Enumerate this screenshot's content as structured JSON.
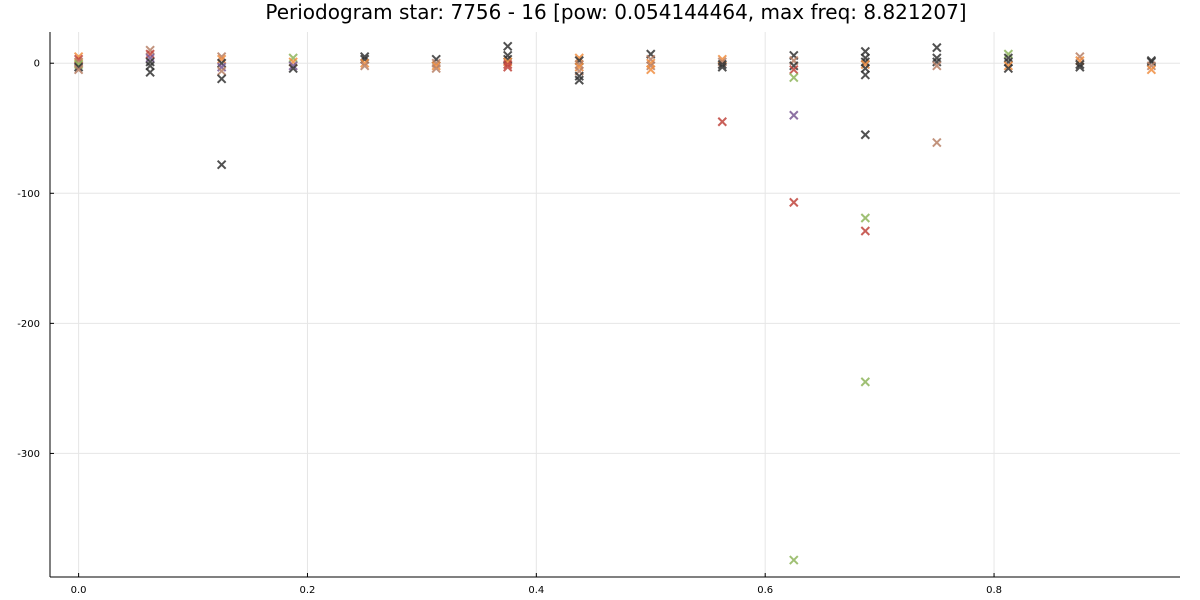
{
  "chart_data": {
    "type": "scatter",
    "title": "Periodogram star: 7756 - 16 [pow: 0.054144464, max freq: 8.821207]",
    "xlabel": "",
    "ylabel": "",
    "xlim": [
      -0.025,
      0.9625
    ],
    "ylim": [
      -395,
      24
    ],
    "x_ticks": [
      0.0,
      0.2,
      0.4,
      0.6,
      0.8
    ],
    "x_tick_labels": [
      "0.0",
      "0.2",
      "0.4",
      "0.6",
      "0.8"
    ],
    "y_ticks": [
      0,
      -100,
      -200,
      -300
    ],
    "y_tick_labels": [
      "0",
      "-100",
      "-200",
      "-300"
    ],
    "grid": true,
    "legend": "none",
    "marker": "x",
    "colors": {
      "dark": "#333333",
      "red": "#c0453d",
      "orange": "#f08e40",
      "green": "#8fb65c",
      "purple": "#7a5a94",
      "brown": "#b88167"
    },
    "points": [
      {
        "x": 0.0,
        "y": 5,
        "c": "orange"
      },
      {
        "x": 0.0,
        "y": 3,
        "c": "red"
      },
      {
        "x": 0.0,
        "y": 1,
        "c": "brown"
      },
      {
        "x": 0.0,
        "y": -1,
        "c": "green"
      },
      {
        "x": 0.0,
        "y": -3,
        "c": "dark"
      },
      {
        "x": 0.0,
        "y": -5,
        "c": "brown"
      },
      {
        "x": 0.0625,
        "y": 10,
        "c": "brown"
      },
      {
        "x": 0.0625,
        "y": 7,
        "c": "red"
      },
      {
        "x": 0.0625,
        "y": 4,
        "c": "purple"
      },
      {
        "x": 0.0625,
        "y": 1,
        "c": "dark"
      },
      {
        "x": 0.0625,
        "y": -2,
        "c": "dark"
      },
      {
        "x": 0.0625,
        "y": -7,
        "c": "dark"
      },
      {
        "x": 0.125,
        "y": 5,
        "c": "brown"
      },
      {
        "x": 0.125,
        "y": 3,
        "c": "orange"
      },
      {
        "x": 0.125,
        "y": 0,
        "c": "dark"
      },
      {
        "x": 0.125,
        "y": -3,
        "c": "purple"
      },
      {
        "x": 0.125,
        "y": -6,
        "c": "brown"
      },
      {
        "x": 0.125,
        "y": -12,
        "c": "dark"
      },
      {
        "x": 0.125,
        "y": -78,
        "c": "dark"
      },
      {
        "x": 0.1875,
        "y": 4,
        "c": "green"
      },
      {
        "x": 0.1875,
        "y": 1,
        "c": "orange"
      },
      {
        "x": 0.1875,
        "y": -2,
        "c": "purple"
      },
      {
        "x": 0.1875,
        "y": -4,
        "c": "dark"
      },
      {
        "x": 0.25,
        "y": 5,
        "c": "dark"
      },
      {
        "x": 0.25,
        "y": 3,
        "c": "dark"
      },
      {
        "x": 0.25,
        "y": 0,
        "c": "orange"
      },
      {
        "x": 0.25,
        "y": -2,
        "c": "brown"
      },
      {
        "x": 0.3125,
        "y": 3,
        "c": "dark"
      },
      {
        "x": 0.3125,
        "y": 0,
        "c": "brown"
      },
      {
        "x": 0.3125,
        "y": -2,
        "c": "orange"
      },
      {
        "x": 0.3125,
        "y": -4,
        "c": "brown"
      },
      {
        "x": 0.375,
        "y": 13,
        "c": "dark"
      },
      {
        "x": 0.375,
        "y": 6,
        "c": "dark"
      },
      {
        "x": 0.375,
        "y": 3,
        "c": "dark"
      },
      {
        "x": 0.375,
        "y": 1,
        "c": "orange"
      },
      {
        "x": 0.375,
        "y": -1,
        "c": "red"
      },
      {
        "x": 0.375,
        "y": -3,
        "c": "red"
      },
      {
        "x": 0.4375,
        "y": 4,
        "c": "orange"
      },
      {
        "x": 0.4375,
        "y": 2,
        "c": "dark"
      },
      {
        "x": 0.4375,
        "y": -1,
        "c": "brown"
      },
      {
        "x": 0.4375,
        "y": -3,
        "c": "orange"
      },
      {
        "x": 0.4375,
        "y": -6,
        "c": "brown"
      },
      {
        "x": 0.4375,
        "y": -10,
        "c": "dark"
      },
      {
        "x": 0.4375,
        "y": -13,
        "c": "dark"
      },
      {
        "x": 0.5,
        "y": 7,
        "c": "dark"
      },
      {
        "x": 0.5,
        "y": 3,
        "c": "brown"
      },
      {
        "x": 0.5,
        "y": 0,
        "c": "orange"
      },
      {
        "x": 0.5,
        "y": -2,
        "c": "brown"
      },
      {
        "x": 0.5,
        "y": -5,
        "c": "orange"
      },
      {
        "x": 0.5625,
        "y": 3,
        "c": "orange"
      },
      {
        "x": 0.5625,
        "y": 1,
        "c": "brown"
      },
      {
        "x": 0.5625,
        "y": -1,
        "c": "dark"
      },
      {
        "x": 0.5625,
        "y": -3,
        "c": "dark"
      },
      {
        "x": 0.5625,
        "y": -45,
        "c": "red"
      },
      {
        "x": 0.625,
        "y": 6,
        "c": "dark"
      },
      {
        "x": 0.625,
        "y": 2,
        "c": "brown"
      },
      {
        "x": 0.625,
        "y": -2,
        "c": "dark"
      },
      {
        "x": 0.625,
        "y": -5,
        "c": "red"
      },
      {
        "x": 0.625,
        "y": -11,
        "c": "green"
      },
      {
        "x": 0.625,
        "y": -40,
        "c": "purple"
      },
      {
        "x": 0.625,
        "y": -107,
        "c": "red"
      },
      {
        "x": 0.625,
        "y": -382,
        "c": "green"
      },
      {
        "x": 0.6875,
        "y": 9,
        "c": "dark"
      },
      {
        "x": 0.6875,
        "y": 4,
        "c": "dark"
      },
      {
        "x": 0.6875,
        "y": 1,
        "c": "dark"
      },
      {
        "x": 0.6875,
        "y": -1,
        "c": "orange"
      },
      {
        "x": 0.6875,
        "y": -4,
        "c": "dark"
      },
      {
        "x": 0.6875,
        "y": -9,
        "c": "dark"
      },
      {
        "x": 0.6875,
        "y": -55,
        "c": "dark"
      },
      {
        "x": 0.6875,
        "y": -119,
        "c": "green"
      },
      {
        "x": 0.6875,
        "y": -129,
        "c": "red"
      },
      {
        "x": 0.6875,
        "y": -245,
        "c": "green"
      },
      {
        "x": 0.75,
        "y": 12,
        "c": "dark"
      },
      {
        "x": 0.75,
        "y": 4,
        "c": "dark"
      },
      {
        "x": 0.75,
        "y": 1,
        "c": "dark"
      },
      {
        "x": 0.75,
        "y": -2,
        "c": "brown"
      },
      {
        "x": 0.75,
        "y": -61,
        "c": "brown"
      },
      {
        "x": 0.8125,
        "y": 7,
        "c": "green"
      },
      {
        "x": 0.8125,
        "y": 4,
        "c": "dark"
      },
      {
        "x": 0.8125,
        "y": 1,
        "c": "dark"
      },
      {
        "x": 0.8125,
        "y": -2,
        "c": "orange"
      },
      {
        "x": 0.8125,
        "y": -4,
        "c": "dark"
      },
      {
        "x": 0.875,
        "y": 5,
        "c": "brown"
      },
      {
        "x": 0.875,
        "y": 2,
        "c": "orange"
      },
      {
        "x": 0.875,
        "y": -1,
        "c": "dark"
      },
      {
        "x": 0.875,
        "y": -3,
        "c": "dark"
      },
      {
        "x": 0.9375,
        "y": 2,
        "c": "dark"
      },
      {
        "x": 0.9375,
        "y": 1,
        "c": "dark"
      },
      {
        "x": 0.9375,
        "y": -2,
        "c": "brown"
      },
      {
        "x": 0.9375,
        "y": -5,
        "c": "orange"
      }
    ]
  }
}
